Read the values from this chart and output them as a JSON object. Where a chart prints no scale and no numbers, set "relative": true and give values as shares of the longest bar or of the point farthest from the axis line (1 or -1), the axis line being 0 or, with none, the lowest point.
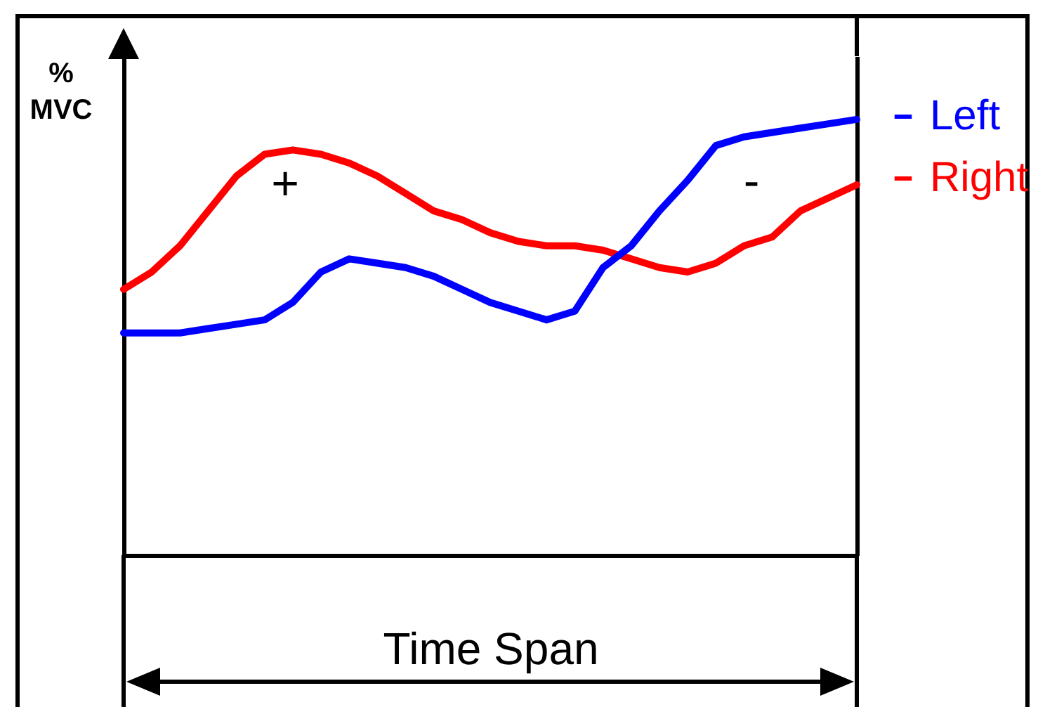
{
  "chart_data": {
    "type": "line",
    "relative": true,
    "ylabel": "% MVC",
    "xlabel": "Time Span",
    "legend": "top right",
    "line_style": "solid",
    "annotations": [
      "+",
      "-"
    ],
    "categories": [
      null,
      null,
      null,
      null,
      null,
      null,
      null,
      null,
      null,
      null,
      null,
      null,
      null,
      null,
      null,
      null,
      null,
      null,
      null,
      null,
      null,
      null,
      null,
      null,
      null,
      null,
      null
    ],
    "series": [
      {
        "name": "Left",
        "color": "#0000ff",
        "values": [
          0.51,
          0.51,
          0.51,
          0.52,
          0.53,
          0.54,
          0.58,
          0.65,
          0.68,
          0.67,
          0.66,
          0.64,
          0.61,
          0.58,
          0.56,
          0.54,
          0.56,
          0.66,
          0.71,
          0.79,
          0.86,
          0.94,
          0.96,
          0.97,
          0.98,
          0.99,
          1
        ]
      },
      {
        "name": "Right",
        "color": "#ff0000",
        "values": [
          0.61,
          0.65,
          0.71,
          0.79,
          0.87,
          0.92,
          0.93,
          0.92,
          0.9,
          0.87,
          0.83,
          0.79,
          0.77,
          0.74,
          0.72,
          0.71,
          0.71,
          0.7,
          0.68,
          0.66,
          0.65,
          0.67,
          0.71,
          0.73,
          0.79,
          0.82,
          0.85
        ]
      }
    ]
  }
}
